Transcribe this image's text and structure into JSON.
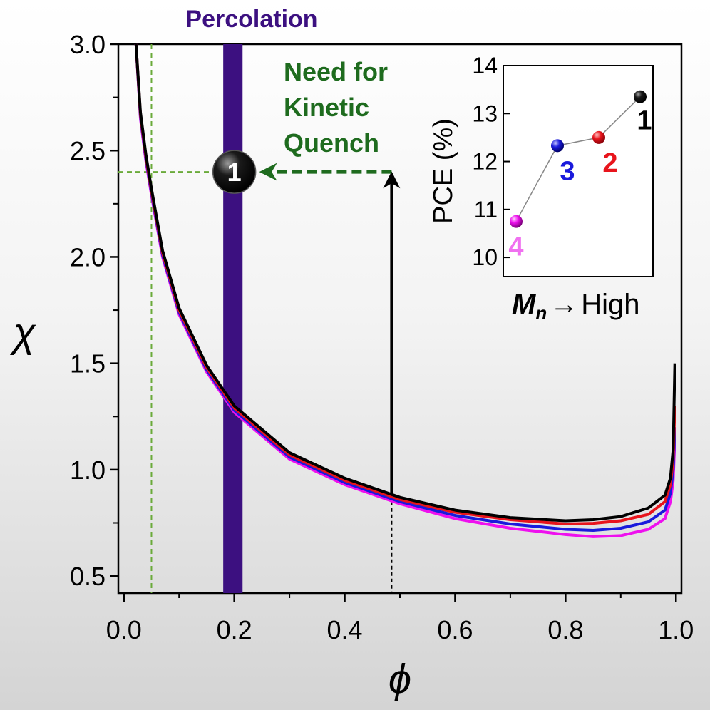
{
  "chart_data": [
    {
      "type": "line",
      "xlabel": "ϕ",
      "ylabel": "χ",
      "xlim": [
        -0.01,
        1.01
      ],
      "ylim": [
        0.42,
        3.0
      ],
      "x_ticks": [
        "0.0",
        "0.2",
        "0.4",
        "0.6",
        "0.8",
        "1.0"
      ],
      "y_ticks": [
        "0.5",
        "1.0",
        "1.5",
        "2.0",
        "2.5",
        "3.0"
      ],
      "grid": false,
      "series": [
        {
          "color": "#000000",
          "x": [
            0.022,
            0.03,
            0.04,
            0.05,
            0.07,
            0.1,
            0.15,
            0.2,
            0.3,
            0.4,
            0.5,
            0.6,
            0.7,
            0.8,
            0.85,
            0.9,
            0.95,
            0.98,
            0.99,
            0.995,
            0.998
          ],
          "y": [
            3.0,
            2.68,
            2.48,
            2.32,
            2.03,
            1.76,
            1.49,
            1.3,
            1.08,
            0.96,
            0.87,
            0.81,
            0.775,
            0.76,
            0.765,
            0.78,
            0.82,
            0.88,
            0.96,
            1.1,
            1.5
          ]
        },
        {
          "color": "#e8141c",
          "x": [
            0.022,
            0.03,
            0.04,
            0.05,
            0.07,
            0.1,
            0.15,
            0.2,
            0.3,
            0.4,
            0.5,
            0.6,
            0.7,
            0.8,
            0.85,
            0.9,
            0.95,
            0.98,
            0.99,
            0.995,
            0.998
          ],
          "y": [
            3.0,
            2.67,
            2.47,
            2.31,
            2.02,
            1.75,
            1.48,
            1.29,
            1.07,
            0.95,
            0.86,
            0.8,
            0.765,
            0.745,
            0.748,
            0.76,
            0.79,
            0.85,
            0.93,
            1.05,
            1.3
          ]
        },
        {
          "color": "#1a1adc",
          "x": [
            0.022,
            0.03,
            0.04,
            0.05,
            0.07,
            0.1,
            0.15,
            0.2,
            0.3,
            0.4,
            0.5,
            0.6,
            0.7,
            0.8,
            0.85,
            0.9,
            0.95,
            0.98,
            0.99,
            0.995,
            0.998
          ],
          "y": [
            3.0,
            2.66,
            2.46,
            2.3,
            2.01,
            1.74,
            1.47,
            1.28,
            1.06,
            0.94,
            0.85,
            0.785,
            0.745,
            0.72,
            0.715,
            0.725,
            0.755,
            0.81,
            0.89,
            1.0,
            1.2
          ]
        },
        {
          "color": "#ee10ee",
          "x": [
            0.022,
            0.03,
            0.04,
            0.05,
            0.07,
            0.1,
            0.15,
            0.2,
            0.3,
            0.4,
            0.5,
            0.6,
            0.7,
            0.8,
            0.85,
            0.9,
            0.95,
            0.98,
            0.99,
            0.995,
            0.998
          ],
          "y": [
            3.0,
            2.65,
            2.45,
            2.29,
            2.0,
            1.73,
            1.46,
            1.27,
            1.05,
            0.93,
            0.84,
            0.77,
            0.725,
            0.695,
            0.685,
            0.69,
            0.72,
            0.77,
            0.85,
            0.95,
            1.15
          ]
        }
      ],
      "annotations": {
        "percolation_label": "Percolation",
        "percolation_band": [
          0.18,
          0.215
        ],
        "percolation_color": "#3c1080",
        "point_label": "1",
        "point": [
          0.2,
          2.4
        ],
        "quench_label_lines": [
          "Need for",
          "Kinetic",
          "Quench"
        ],
        "quench_color": "#1e6b1e",
        "arrow_x": 0.485,
        "arrow_from_y": 0.88,
        "arrow_to_y": 2.4,
        "ref_x": 0.05,
        "ref_y": 2.4
      }
    },
    {
      "type": "line",
      "ylabel": "PCE (%)",
      "xlabel_parts": {
        "symbol": "M",
        "subscript": "n",
        "arrow": "→",
        "text": "High"
      },
      "ylim": [
        9.6,
        14.0
      ],
      "y_ticks": [
        "10",
        "11",
        "12",
        "13",
        "14"
      ],
      "points": [
        {
          "label": "4",
          "pce": 10.75,
          "color": "#ee10ee",
          "label_color": "#f070f0"
        },
        {
          "label": "3",
          "pce": 12.33,
          "color": "#1a1adc",
          "label_color": "#1a1adc"
        },
        {
          "label": "2",
          "pce": 12.5,
          "color": "#e8141c",
          "label_color": "#e8141c"
        },
        {
          "label": "1",
          "pce": 13.35,
          "color": "#000000",
          "label_color": "#000000"
        }
      ]
    }
  ]
}
